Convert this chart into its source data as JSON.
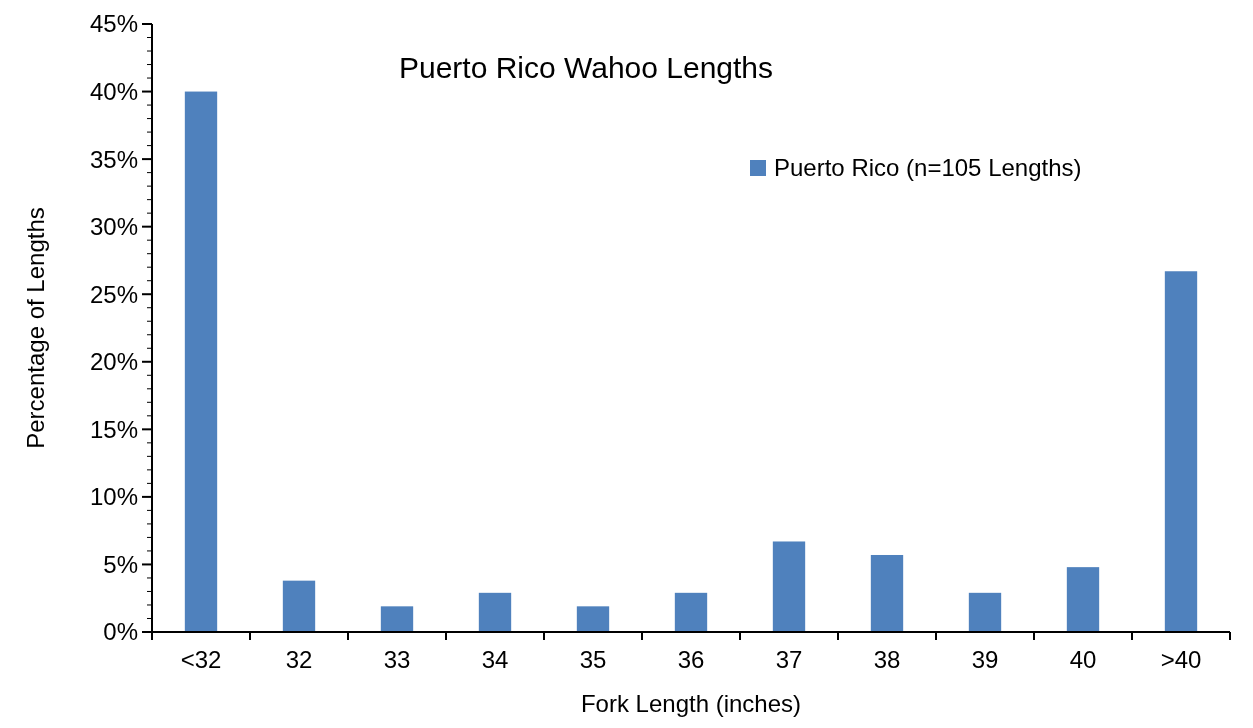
{
  "chart_data": {
    "type": "bar",
    "title": "Puerto Rico Wahoo Lengths",
    "xlabel": "Fork Length (inches)",
    "ylabel": "Percentage of Lengths",
    "categories": [
      "<32",
      "32",
      "33",
      "34",
      "35",
      "36",
      "37",
      "38",
      "39",
      "40",
      ">40"
    ],
    "series": [
      {
        "name": "Puerto Rico (n=105 Lengths)",
        "color": "#4f81bd",
        "values": [
          40,
          3.8,
          1.9,
          2.9,
          1.9,
          2.9,
          6.7,
          5.7,
          2.9,
          4.8,
          26.7
        ]
      }
    ],
    "ylim": [
      0,
      45
    ],
    "yticks": [
      {
        "value": 0,
        "label": "0%"
      },
      {
        "value": 1,
        "label": null
      },
      {
        "value": 2,
        "label": null
      },
      {
        "value": 3,
        "label": null
      },
      {
        "value": 4,
        "label": null
      },
      {
        "value": 5,
        "label": "5%"
      },
      {
        "value": 6,
        "label": null
      },
      {
        "value": 7,
        "label": null
      },
      {
        "value": 8,
        "label": null
      },
      {
        "value": 9,
        "label": null
      },
      {
        "value": 10,
        "label": "10%"
      },
      {
        "value": 11,
        "label": null
      },
      {
        "value": 12,
        "label": null
      },
      {
        "value": 13,
        "label": null
      },
      {
        "value": 14,
        "label": null
      },
      {
        "value": 15,
        "label": "15%"
      },
      {
        "value": 16,
        "label": null
      },
      {
        "value": 17,
        "label": null
      },
      {
        "value": 18,
        "label": null
      },
      {
        "value": 19,
        "label": null
      },
      {
        "value": 20,
        "label": "20%"
      },
      {
        "value": 21,
        "label": null
      },
      {
        "value": 22,
        "label": null
      },
      {
        "value": 23,
        "label": null
      },
      {
        "value": 24,
        "label": null
      },
      {
        "value": 25,
        "label": "25%"
      },
      {
        "value": 26,
        "label": null
      },
      {
        "value": 27,
        "label": null
      },
      {
        "value": 28,
        "label": null
      },
      {
        "value": 29,
        "label": null
      },
      {
        "value": 30,
        "label": "30%"
      },
      {
        "value": 31,
        "label": null
      },
      {
        "value": 32,
        "label": null
      },
      {
        "value": 33,
        "label": null
      },
      {
        "value": 34,
        "label": null
      },
      {
        "value": 35,
        "label": "35%"
      },
      {
        "value": 36,
        "label": null
      },
      {
        "value": 37,
        "label": null
      },
      {
        "value": 38,
        "label": null
      },
      {
        "value": 39,
        "label": null
      },
      {
        "value": 40,
        "label": "40%"
      },
      {
        "value": 41,
        "label": null
      },
      {
        "value": 42,
        "label": null
      },
      {
        "value": 43,
        "label": null
      },
      {
        "value": 44,
        "label": null
      },
      {
        "value": 45,
        "label": "45%"
      }
    ],
    "legend": "top right"
  }
}
